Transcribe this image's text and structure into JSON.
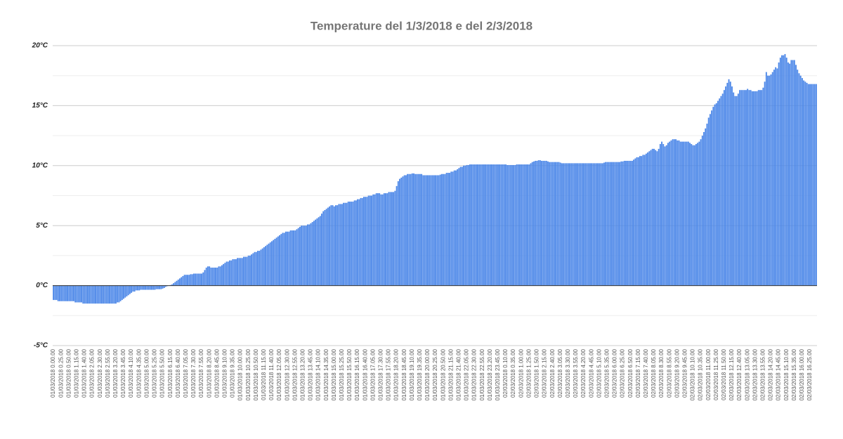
{
  "chart_data": {
    "type": "bar",
    "title": "Temperature del 1/3/2018 e del 2/3/2018",
    "color": "#4a86e8",
    "grid": true,
    "ylim": [
      -5,
      20
    ],
    "yticks": [
      {
        "value": -5,
        "label": "-5°C"
      },
      {
        "value": 0,
        "label": "0°C"
      },
      {
        "value": 5,
        "label": "5°C"
      },
      {
        "value": 10,
        "label": "10°C"
      },
      {
        "value": 15,
        "label": "15°C"
      },
      {
        "value": 20,
        "label": "20°C"
      }
    ],
    "minor_yticks": [
      -2.5,
      2.5,
      7.5,
      12.5,
      17.5
    ],
    "categories": [
      "01/03/2018 0.00.00",
      null,
      null,
      null,
      null,
      "01/03/2018 0.25.00",
      null,
      null,
      null,
      null,
      "01/03/2018 0.50.00",
      null,
      null,
      null,
      null,
      "01/03/2018 1.15.00",
      null,
      null,
      null,
      null,
      "01/03/2018 1.40.00",
      null,
      null,
      null,
      null,
      "01/03/2018 2.05.00",
      null,
      null,
      null,
      null,
      "01/03/2018 2.30.00",
      null,
      null,
      null,
      null,
      "01/03/2018 2.55.00",
      null,
      null,
      null,
      null,
      "01/03/2018 3.20.00",
      null,
      null,
      null,
      null,
      "01/03/2018 3.45.00",
      null,
      null,
      null,
      null,
      "01/03/2018 4.10.00",
      null,
      null,
      null,
      null,
      "01/03/2018 4.35.00",
      null,
      null,
      null,
      null,
      "01/03/2018 5.00.00",
      null,
      null,
      null,
      null,
      "01/03/2018 5.25.00",
      null,
      null,
      null,
      null,
      "01/03/2018 5.50.00",
      null,
      null,
      null,
      null,
      "01/03/2018 6.15.00",
      null,
      null,
      null,
      null,
      "01/03/2018 6.40.00",
      null,
      null,
      null,
      null,
      "01/03/2018 7.05.00",
      null,
      null,
      null,
      null,
      "01/03/2018 7.30.00",
      null,
      null,
      null,
      null,
      "01/03/2018 7.55.00",
      null,
      null,
      null,
      null,
      "01/03/2018 8.20.00",
      null,
      null,
      null,
      null,
      "01/03/2018 8.45.00",
      null,
      null,
      null,
      null,
      "01/03/2018 9.10.00",
      null,
      null,
      null,
      null,
      "01/03/2018 9.35.00",
      null,
      null,
      null,
      null,
      "01/03/2018 10.00.00",
      null,
      null,
      null,
      null,
      "01/03/2018 10.25.00",
      null,
      null,
      null,
      null,
      "01/03/2018 10.50.00",
      null,
      null,
      null,
      null,
      "01/03/2018 11.15.00",
      null,
      null,
      null,
      null,
      "01/03/2018 11.40.00",
      null,
      null,
      null,
      null,
      "01/03/2018 12.05.00",
      null,
      null,
      null,
      null,
      "01/03/2018 12.30.00",
      null,
      null,
      null,
      null,
      "01/03/2018 12.55.00",
      null,
      null,
      null,
      null,
      "01/03/2018 13.20.00",
      null,
      null,
      null,
      null,
      "01/03/2018 13.45.00",
      null,
      null,
      null,
      null,
      "01/03/2018 14.10.00",
      null,
      null,
      null,
      null,
      "01/03/2018 14.35.00",
      null,
      null,
      null,
      null,
      "01/03/2018 15.00.00",
      null,
      null,
      null,
      null,
      "01/03/2018 15.25.00",
      null,
      null,
      null,
      null,
      "01/03/2018 15.50.00",
      null,
      null,
      null,
      null,
      "01/03/2018 16.15.00",
      null,
      null,
      null,
      null,
      "01/03/2018 16.40.00",
      null,
      null,
      null,
      null,
      "01/03/2018 17.05.00",
      null,
      null,
      null,
      null,
      "01/03/2018 17.30.00",
      null,
      null,
      null,
      null,
      "01/03/2018 17.55.00",
      null,
      null,
      null,
      null,
      "01/03/2018 18.20.00",
      null,
      null,
      null,
      null,
      "01/03/2018 18.45.00",
      null,
      null,
      null,
      null,
      "01/03/2018 19.10.00",
      null,
      null,
      null,
      null,
      "01/03/2018 19.35.00",
      null,
      null,
      null,
      null,
      "01/03/2018 20.00.00",
      null,
      null,
      null,
      null,
      "01/03/2018 20.25.00",
      null,
      null,
      null,
      null,
      "01/03/2018 20.50.00",
      null,
      null,
      null,
      null,
      "01/03/2018 21.15.00",
      null,
      null,
      null,
      null,
      "01/03/2018 21.40.00",
      null,
      null,
      null,
      null,
      "01/03/2018 22.05.00",
      null,
      null,
      null,
      null,
      "01/03/2018 22.30.00",
      null,
      null,
      null,
      null,
      "01/03/2018 22.55.00",
      null,
      null,
      null,
      null,
      "01/03/2018 23.20.00",
      null,
      null,
      null,
      null,
      "01/03/2018 23.45.00",
      null,
      null,
      null,
      null,
      "02/03/2018 0.10.00",
      null,
      null,
      null,
      null,
      "02/03/2018 0.35.00",
      null,
      null,
      null,
      null,
      "02/03/2018 1.00.00",
      null,
      null,
      null,
      null,
      "02/03/2018 1.25.00",
      null,
      null,
      null,
      null,
      "02/03/2018 1.50.00",
      null,
      null,
      null,
      null,
      "02/03/2018 2.15.00",
      null,
      null,
      null,
      null,
      "02/03/2018 2.40.00",
      null,
      null,
      null,
      null,
      "02/03/2018 3.05.00",
      null,
      null,
      null,
      null,
      "02/03/2018 3.30.00",
      null,
      null,
      null,
      null,
      "02/03/2018 3.55.00",
      null,
      null,
      null,
      null,
      "02/03/2018 4.20.00",
      null,
      null,
      null,
      null,
      "02/03/2018 4.45.00",
      null,
      null,
      null,
      null,
      "02/03/2018 5.10.00",
      null,
      null,
      null,
      null,
      "02/03/2018 5.35.00",
      null,
      null,
      null,
      null,
      "02/03/2018 6.00.00",
      null,
      null,
      null,
      null,
      "02/03/2018 6.25.00",
      null,
      null,
      null,
      null,
      "02/03/2018 6.50.00",
      null,
      null,
      null,
      null,
      "02/03/2018 7.15.00",
      null,
      null,
      null,
      null,
      "02/03/2018 7.40.00",
      null,
      null,
      null,
      null,
      "02/03/2018 8.05.00",
      null,
      null,
      null,
      null,
      "02/03/2018 8.30.00",
      null,
      null,
      null,
      null,
      "02/03/2018 8.55.00",
      null,
      null,
      null,
      null,
      "02/03/2018 9.20.00",
      null,
      null,
      null,
      null,
      "02/03/2018 9.45.00",
      null,
      null,
      null,
      null,
      "02/03/2018 10.10.00",
      null,
      null,
      null,
      null,
      "02/03/2018 10.35.00",
      null,
      null,
      null,
      null,
      "02/03/2018 11.00.00",
      null,
      null,
      null,
      null,
      "02/03/2018 11.25.00",
      null,
      null,
      null,
      null,
      "02/03/2018 11.50.00",
      null,
      null,
      null,
      null,
      "02/03/2018 12.15.00",
      null,
      null,
      null,
      null,
      "02/03/2018 12.40.00",
      null,
      null,
      null,
      null,
      "02/03/2018 13.05.00",
      null,
      null,
      null,
      null,
      "02/03/2018 13.30.00",
      null,
      null,
      null,
      null,
      "02/03/2018 13.55.00",
      null,
      null,
      null,
      null,
      "02/03/2018 14.20.00",
      null,
      null,
      null,
      null,
      "02/03/2018 14.45.00",
      null,
      null,
      null,
      null,
      "02/03/2018 15.10.00",
      null,
      null,
      null,
      null,
      "02/03/2018 15.35.00",
      null,
      null,
      null,
      null,
      "02/03/2018 16.00.00",
      null,
      null,
      null,
      null,
      "02/03/2018 16.25.00",
      null,
      null,
      null,
      null
    ],
    "values": [
      -1.2,
      -1.2,
      -1.2,
      -1.3,
      -1.3,
      -1.3,
      -1.3,
      -1.3,
      -1.3,
      -1.3,
      -1.3,
      -1.3,
      -1.3,
      -1.3,
      -1.4,
      -1.4,
      -1.4,
      -1.4,
      -1.4,
      -1.5,
      -1.5,
      -1.5,
      -1.5,
      -1.5,
      -1.5,
      -1.5,
      -1.5,
      -1.5,
      -1.5,
      -1.5,
      -1.5,
      -1.5,
      -1.5,
      -1.5,
      -1.5,
      -1.5,
      -1.5,
      -1.5,
      -1.5,
      -1.5,
      -1.5,
      -1.4,
      -1.4,
      -1.3,
      -1.2,
      -1.1,
      -1.0,
      -0.9,
      -0.8,
      -0.7,
      -0.6,
      -0.5,
      -0.5,
      -0.4,
      -0.4,
      -0.4,
      -0.35,
      -0.35,
      -0.35,
      -0.35,
      -0.35,
      -0.35,
      -0.35,
      -0.35,
      -0.35,
      -0.35,
      -0.3,
      -0.3,
      -0.3,
      -0.3,
      -0.25,
      -0.2,
      -0.1,
      -0.05,
      0.0,
      0.05,
      0.1,
      0.2,
      0.3,
      0.4,
      0.5,
      0.6,
      0.7,
      0.8,
      0.9,
      0.9,
      0.9,
      0.9,
      0.95,
      0.95,
      1.0,
      1.0,
      1.0,
      1.0,
      1.0,
      1.0,
      1.1,
      1.3,
      1.5,
      1.6,
      1.6,
      1.5,
      1.5,
      1.5,
      1.5,
      1.5,
      1.6,
      1.6,
      1.7,
      1.8,
      1.9,
      2.0,
      2.0,
      2.1,
      2.1,
      2.2,
      2.2,
      2.2,
      2.3,
      2.3,
      2.3,
      2.3,
      2.4,
      2.4,
      2.4,
      2.5,
      2.5,
      2.6,
      2.7,
      2.8,
      2.8,
      2.9,
      2.9,
      3.0,
      3.1,
      3.2,
      3.3,
      3.4,
      3.5,
      3.6,
      3.7,
      3.8,
      3.9,
      4.0,
      4.1,
      4.2,
      4.3,
      4.4,
      4.4,
      4.5,
      4.5,
      4.5,
      4.6,
      4.6,
      4.6,
      4.6,
      4.7,
      4.8,
      4.9,
      5.0,
      5.0,
      5.0,
      5.0,
      5.1,
      5.1,
      5.2,
      5.3,
      5.4,
      5.5,
      5.6,
      5.7,
      5.8,
      6.0,
      6.2,
      6.3,
      6.4,
      6.5,
      6.6,
      6.7,
      6.7,
      6.6,
      6.7,
      6.7,
      6.8,
      6.8,
      6.8,
      6.9,
      6.9,
      6.9,
      7.0,
      7.0,
      7.0,
      7.0,
      7.1,
      7.1,
      7.2,
      7.2,
      7.3,
      7.3,
      7.4,
      7.4,
      7.4,
      7.5,
      7.5,
      7.5,
      7.6,
      7.6,
      7.7,
      7.7,
      7.7,
      7.6,
      7.6,
      7.7,
      7.7,
      7.7,
      7.8,
      7.8,
      7.8,
      7.8,
      7.9,
      8.3,
      8.7,
      8.9,
      9.0,
      9.1,
      9.2,
      9.2,
      9.3,
      9.3,
      9.3,
      9.35,
      9.35,
      9.3,
      9.3,
      9.3,
      9.3,
      9.3,
      9.2,
      9.2,
      9.2,
      9.2,
      9.2,
      9.2,
      9.2,
      9.2,
      9.2,
      9.2,
      9.2,
      9.25,
      9.3,
      9.3,
      9.3,
      9.4,
      9.4,
      9.4,
      9.5,
      9.5,
      9.6,
      9.6,
      9.7,
      9.8,
      9.9,
      9.9,
      10.0,
      10.0,
      10.05,
      10.05,
      10.1,
      10.1,
      10.1,
      10.1,
      10.1,
      10.1,
      10.1,
      10.1,
      10.1,
      10.1,
      10.1,
      10.1,
      10.1,
      10.1,
      10.1,
      10.1,
      10.1,
      10.1,
      10.1,
      10.1,
      10.1,
      10.1,
      10.1,
      10.1,
      10.05,
      10.05,
      10.05,
      10.05,
      10.05,
      10.05,
      10.1,
      10.1,
      10.1,
      10.1,
      10.1,
      10.1,
      10.1,
      10.1,
      10.1,
      10.2,
      10.3,
      10.35,
      10.4,
      10.4,
      10.45,
      10.45,
      10.4,
      10.4,
      10.4,
      10.4,
      10.35,
      10.3,
      10.3,
      10.3,
      10.3,
      10.3,
      10.3,
      10.3,
      10.25,
      10.2,
      10.2,
      10.2,
      10.2,
      10.2,
      10.2,
      10.2,
      10.2,
      10.2,
      10.2,
      10.2,
      10.2,
      10.2,
      10.2,
      10.2,
      10.2,
      10.2,
      10.2,
      10.2,
      10.2,
      10.2,
      10.2,
      10.2,
      10.2,
      10.2,
      10.2,
      10.2,
      10.25,
      10.3,
      10.3,
      10.3,
      10.3,
      10.3,
      10.3,
      10.3,
      10.3,
      10.3,
      10.3,
      10.35,
      10.35,
      10.4,
      10.4,
      10.4,
      10.4,
      10.4,
      10.4,
      10.5,
      10.6,
      10.7,
      10.7,
      10.8,
      10.8,
      10.9,
      10.9,
      11.0,
      11.1,
      11.2,
      11.3,
      11.4,
      11.4,
      11.3,
      11.2,
      11.4,
      11.8,
      12.0,
      11.8,
      11.6,
      11.7,
      11.9,
      12.0,
      12.1,
      12.2,
      12.2,
      12.2,
      12.1,
      12.1,
      12.0,
      12.0,
      12.0,
      12.0,
      12.0,
      12.0,
      11.9,
      11.8,
      11.7,
      11.7,
      11.8,
      11.9,
      12.0,
      12.2,
      12.5,
      12.8,
      13.1,
      13.5,
      14.0,
      14.3,
      14.6,
      14.9,
      15.1,
      15.2,
      15.4,
      15.6,
      15.8,
      16.0,
      16.3,
      16.6,
      16.9,
      17.2,
      17.0,
      16.6,
      16.1,
      15.8,
      15.8,
      16.0,
      16.3,
      16.3,
      16.3,
      16.3,
      16.3,
      16.4,
      16.3,
      16.3,
      16.2,
      16.2,
      16.2,
      16.2,
      16.3,
      16.3,
      16.3,
      16.5,
      17.0,
      17.8,
      17.5,
      17.5,
      17.6,
      17.8,
      18.0,
      18.2,
      18.1,
      18.6,
      19.0,
      19.2,
      19.2,
      19.3,
      19.0,
      18.6,
      18.5,
      18.8,
      18.8,
      18.8,
      18.4,
      18.0,
      17.7,
      17.5,
      17.3,
      17.1,
      17.0,
      16.9,
      16.8,
      16.8,
      16.8,
      16.8,
      16.8,
      16.8
    ]
  }
}
